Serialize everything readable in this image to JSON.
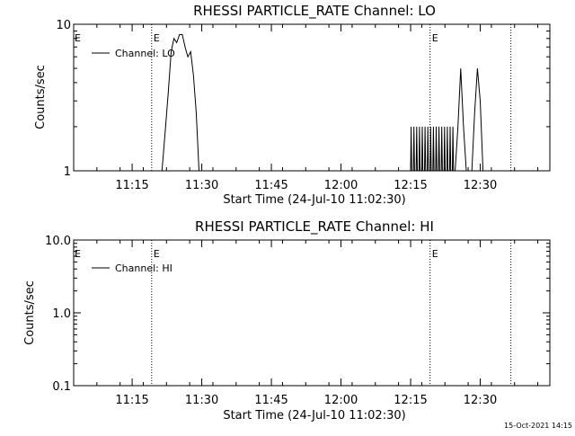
{
  "timestamp": "15-Oct-2021 14:15",
  "chart_data": [
    {
      "type": "line",
      "title": "RHESSI PARTICLE_RATE Channel: LO",
      "xlabel": "Start Time (24-Jul-10 11:02:30)",
      "ylabel": "Counts/sec",
      "y_scale": "log",
      "ylim": [
        1,
        10
      ],
      "xlim": [
        11.04,
        12.75
      ],
      "x_ticks": [
        {
          "value": 11.25,
          "label": "11:15"
        },
        {
          "value": 11.5,
          "label": "11:30"
        },
        {
          "value": 11.75,
          "label": "11:45"
        },
        {
          "value": 12.0,
          "label": "12:00"
        },
        {
          "value": 12.25,
          "label": "12:15"
        },
        {
          "value": 12.5,
          "label": "12:30"
        }
      ],
      "y_ticks": [
        {
          "value": 1,
          "label": "1"
        },
        {
          "value": 10,
          "label": "10"
        }
      ],
      "event_lines": [
        {
          "x": 11.32,
          "label": "E"
        },
        {
          "x": 12.32,
          "label": "E"
        },
        {
          "x": 12.61,
          "label": ""
        }
      ],
      "start_marker": "E",
      "legend": {
        "position": "top-left",
        "entries": [
          "Channel: LO"
        ]
      },
      "grid": false,
      "series": [
        {
          "name": "Channel: LO",
          "x": [
            11.357,
            11.37,
            11.38,
            11.39,
            11.4,
            11.41,
            11.42,
            11.43,
            11.44,
            11.45,
            11.46,
            11.47,
            11.48,
            11.49
          ],
          "y": [
            1,
            2,
            3.5,
            6.5,
            8,
            7.5,
            8.5,
            8.5,
            7,
            6,
            6.5,
            4.5,
            2.5,
            1
          ]
        },
        {
          "name": "Channel: LO",
          "x": [
            12.25,
            12.252,
            12.254,
            12.26,
            12.262,
            12.264,
            12.27,
            12.272,
            12.274,
            12.28,
            12.282,
            12.284,
            12.29,
            12.292,
            12.294,
            12.3,
            12.302,
            12.304,
            12.31,
            12.312,
            12.314,
            12.32,
            12.322,
            12.324,
            12.33,
            12.332,
            12.334,
            12.34,
            12.342,
            12.344,
            12.35,
            12.352,
            12.354,
            12.36,
            12.362,
            12.364,
            12.37,
            12.372,
            12.374,
            12.38,
            12.382,
            12.384,
            12.39,
            12.392,
            12.394,
            12.4,
            12.402,
            12.404
          ],
          "y": [
            1,
            2,
            1,
            1,
            2,
            1,
            1,
            2,
            1,
            1,
            2,
            1,
            1,
            2,
            1,
            1,
            2,
            1,
            1,
            2,
            1,
            1,
            2,
            1,
            1,
            2,
            1,
            1,
            2,
            1,
            1,
            2,
            1,
            1,
            2,
            1,
            1,
            2,
            1,
            1,
            2,
            1,
            1,
            2,
            1,
            1,
            2,
            1
          ]
        },
        {
          "name": "Channel: LO",
          "x": [
            12.41,
            12.42,
            12.43,
            12.44,
            12.45,
            12.47,
            12.48,
            12.49,
            12.5,
            12.51
          ],
          "y": [
            1,
            2,
            5,
            2,
            1,
            1,
            2.5,
            5,
            3,
            1
          ]
        }
      ]
    },
    {
      "type": "line",
      "title": "RHESSI PARTICLE_RATE Channel: HI",
      "xlabel": "Start Time (24-Jul-10 11:02:30)",
      "ylabel": "Counts/sec",
      "y_scale": "log",
      "ylim": [
        0.1,
        10
      ],
      "xlim": [
        11.04,
        12.75
      ],
      "x_ticks": [
        {
          "value": 11.25,
          "label": "11:15"
        },
        {
          "value": 11.5,
          "label": "11:30"
        },
        {
          "value": 11.75,
          "label": "11:45"
        },
        {
          "value": 12.0,
          "label": "12:00"
        },
        {
          "value": 12.25,
          "label": "12:15"
        },
        {
          "value": 12.5,
          "label": "12:30"
        }
      ],
      "y_ticks": [
        {
          "value": 0.1,
          "label": "0.1"
        },
        {
          "value": 1,
          "label": "1.0"
        },
        {
          "value": 10,
          "label": "10.0"
        }
      ],
      "event_lines": [
        {
          "x": 11.32,
          "label": "E"
        },
        {
          "x": 12.32,
          "label": "E"
        },
        {
          "x": 12.61,
          "label": ""
        }
      ],
      "start_marker": "E",
      "legend": {
        "position": "top-left",
        "entries": [
          "Channel: HI"
        ]
      },
      "grid": false,
      "series": [
        {
          "name": "Channel: HI",
          "x": [],
          "y": []
        }
      ]
    }
  ]
}
